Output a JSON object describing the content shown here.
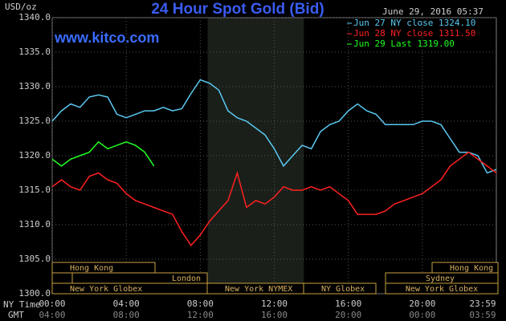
{
  "chart_data": {
    "type": "line",
    "title": "24 Hour Spot Gold (Bid)",
    "site": "www.kitco.com",
    "timestamp": "June 29, 2016 05:37",
    "y_unit": "USD/oz",
    "x_label": "NY Time",
    "x2_label": "GMT",
    "x": [
      0,
      0.5,
      1,
      1.5,
      2,
      2.5,
      3,
      3.5,
      4,
      4.5,
      5,
      5.5,
      6,
      6.5,
      7,
      7.5,
      8,
      8.5,
      9,
      9.5,
      10,
      10.5,
      11,
      11.5,
      12,
      12.5,
      13,
      13.5,
      14,
      14.5,
      15,
      15.5,
      16,
      16.5,
      17,
      17.5,
      18,
      18.5,
      19,
      19.5,
      20,
      20.5,
      21,
      21.5,
      22,
      22.5,
      23,
      23.5,
      24
    ],
    "xlim": [
      0,
      24
    ],
    "xticks": [
      {
        "value": 0,
        "label": "00:00"
      },
      {
        "value": 4,
        "label": "04:00"
      },
      {
        "value": 8,
        "label": "08:00"
      },
      {
        "value": 12,
        "label": "12:00"
      },
      {
        "value": 16,
        "label": "16:00"
      },
      {
        "value": 20,
        "label": "20:00"
      },
      {
        "value": 23.98,
        "label": "23:59"
      }
    ],
    "x2ticks": [
      "04:00",
      "08:00",
      "12:00",
      "16:00",
      "20:00",
      "00:00",
      "03:59"
    ],
    "ylim": [
      1300,
      1340
    ],
    "yticks": [
      {
        "value": 1300,
        "label": "1300.0"
      },
      {
        "value": 1305,
        "label": "1305.0"
      },
      {
        "value": 1310,
        "label": "1310.0"
      },
      {
        "value": 1315,
        "label": "1315.0"
      },
      {
        "value": 1320,
        "label": "1320.0"
      },
      {
        "value": 1325,
        "label": "1325.0"
      },
      {
        "value": 1330,
        "label": "1330.0"
      },
      {
        "value": 1335,
        "label": "1335.0"
      },
      {
        "value": 1340,
        "label": "1340.0"
      }
    ],
    "grid": true,
    "sessions": [
      "Hong Kong",
      "London",
      "New York Globex",
      "New York NYMEX",
      "NY Globex",
      "Sydney",
      "Hong Kong",
      "New York Globex"
    ],
    "series": [
      {
        "name": "Jun 27 NY close 1324.10",
        "color": "#5ac8f0",
        "values": [
          1325,
          1326.5,
          1327.5,
          1327,
          1328.5,
          1328.8,
          1328.5,
          1326,
          1325.5,
          1326,
          1326.5,
          1326.5,
          1327,
          1326.5,
          1326.8,
          1329,
          1331,
          1330.5,
          1329.5,
          1326.5,
          1325.5,
          1325,
          1324,
          1323,
          1321,
          1318.5,
          1320,
          1321.5,
          1321,
          1323.5,
          1324.5,
          1325,
          1326.5,
          1327.5,
          1326.5,
          1326,
          1324.5,
          1324.5,
          1324.5,
          1324.5,
          1325,
          1325,
          1324.5,
          1322.5,
          1320.5,
          1320.5,
          1320,
          1317.5,
          1318
        ]
      },
      {
        "name": "Jun 28 NY close 1311.50",
        "color": "#ff2020",
        "values": [
          1315.5,
          1316.5,
          1315.5,
          1315,
          1317,
          1317.5,
          1316.5,
          1316,
          1314.5,
          1313.5,
          1313,
          1312.5,
          1312,
          1311.5,
          1309,
          1307,
          1308.5,
          1310.5,
          1312,
          1313.5,
          1317.5,
          1312.5,
          1313.5,
          1313,
          1314,
          1315.5,
          1315,
          1315,
          1315.5,
          1315,
          1315.5,
          1314.5,
          1313.5,
          1311.5,
          1311.5,
          1311.5,
          1312,
          1313,
          1313.5,
          1314,
          1314.5,
          1315.5,
          1316.5,
          1318.5,
          1319.5,
          1320.5,
          1319.5,
          1318.5,
          1317.5
        ]
      },
      {
        "name": "Jun 29 Last 1319.00",
        "color": "#20ff20",
        "values": [
          1319.5,
          1318.5,
          1319.5,
          1320,
          1320.5,
          1322,
          1321,
          1321.5,
          1322,
          1321.5,
          1320.5,
          1318.5,
          null,
          null,
          null,
          null,
          null,
          null,
          null,
          null,
          null,
          null,
          null,
          null,
          null,
          null,
          null,
          null,
          null,
          null,
          null,
          null,
          null,
          null,
          null,
          null,
          null,
          null,
          null,
          null,
          null,
          null,
          null,
          null,
          null,
          null,
          null,
          null,
          null
        ]
      }
    ]
  }
}
